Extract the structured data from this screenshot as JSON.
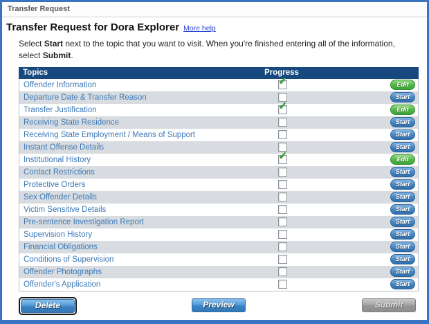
{
  "window": {
    "title": "Transfer Request"
  },
  "header": {
    "title": "Transfer Request for Dora Explorer",
    "more_help_label": "More help"
  },
  "instructions": {
    "part1": "Select ",
    "bold1": "Start",
    "part2": " next to the topic that you want to visit. When you're finished entering all of the information, select ",
    "bold2": "Submit",
    "part3": "."
  },
  "table": {
    "headers": {
      "topics": "Topics",
      "progress": "Progress"
    },
    "rows": [
      {
        "topic": "Offender Information",
        "completed": true,
        "action": "Edit"
      },
      {
        "topic": "Departure Date & Transfer Reason",
        "completed": false,
        "action": "Start"
      },
      {
        "topic": "Transfer Justification",
        "completed": true,
        "action": "Edit"
      },
      {
        "topic": "Receiving State Residence",
        "completed": false,
        "action": "Start"
      },
      {
        "topic": "Receiving State Employment / Means of Support",
        "completed": false,
        "action": "Start"
      },
      {
        "topic": "Instant Offense Details",
        "completed": false,
        "action": "Start"
      },
      {
        "topic": "Institutional History",
        "completed": true,
        "action": "Edit"
      },
      {
        "topic": "Contact Restrictions",
        "completed": false,
        "action": "Start"
      },
      {
        "topic": "Protective Orders",
        "completed": false,
        "action": "Start"
      },
      {
        "topic": "Sex Offender Details",
        "completed": false,
        "action": "Start"
      },
      {
        "topic": "Victim Sensitive Details",
        "completed": false,
        "action": "Start"
      },
      {
        "topic": "Pre-sentence Investigation Report",
        "completed": false,
        "action": "Start"
      },
      {
        "topic": "Supervision History",
        "completed": false,
        "action": "Start"
      },
      {
        "topic": "Financial Obligations",
        "completed": false,
        "action": "Start"
      },
      {
        "topic": "Conditions of Supervision",
        "completed": false,
        "action": "Start"
      },
      {
        "topic": "Offender Photographs",
        "completed": false,
        "action": "Start"
      },
      {
        "topic": "Offender's Application",
        "completed": false,
        "action": "Start"
      }
    ]
  },
  "icons": {
    "checkmark_glyph": "✓"
  },
  "footer": {
    "delete_label": "Delete",
    "preview_label": "Preview",
    "submit_label": "Submit"
  },
  "colors": {
    "page_border_blue": "#3b72c1",
    "table_header_navy": "#17497f",
    "row_alt_gray": "#d8dce0",
    "topic_link_blue": "#3d7ab8",
    "edit_green": "#3da33d",
    "start_blue": "#2f6fad",
    "check_green": "#2f9b2f"
  }
}
